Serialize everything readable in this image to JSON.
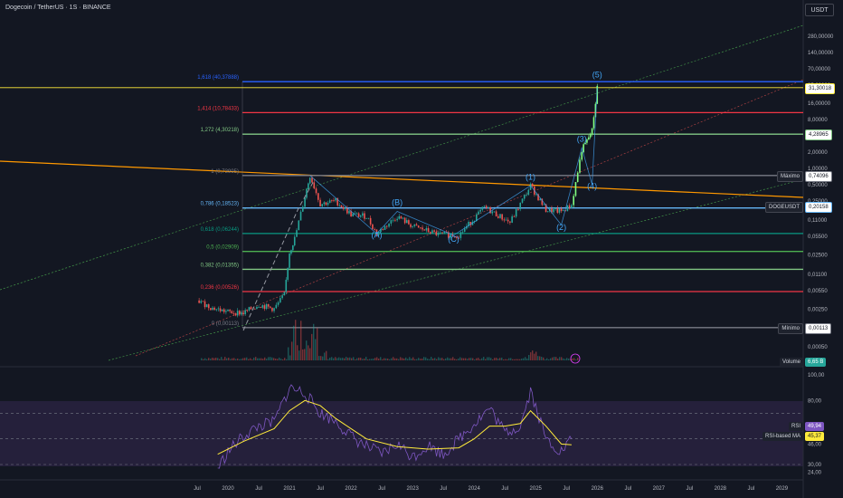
{
  "header": {
    "title": "Dogecoin / TetherUS · 1S · BINANCE",
    "currency_button": "USDT"
  },
  "chart_data": [
    {
      "type": "line",
      "subtype": "candlestick",
      "name": "DOGEUSDT",
      "y_scale": "log",
      "x_tick_labels": [
        "Jul",
        "2020",
        "Jul",
        "2021",
        "Jul",
        "2022",
        "Jul",
        "2023",
        "Jul",
        "2024",
        "Jul",
        "2025",
        "Jul",
        "2026",
        "Jul",
        "2027",
        "Jul",
        "2028",
        "Jul",
        "2029"
      ],
      "y_tick_labels": [
        "280,00000",
        "140,00000",
        "70,00000",
        "35,00000",
        "16,00000",
        "8,00000",
        "4,00000",
        "2,00000",
        "1,00000",
        "0,50000",
        "0,25000",
        "0,11000",
        "0,05500",
        "0,02500",
        "0,01100",
        "0,00550",
        "0,00250",
        "0,00100",
        "0,00050"
      ],
      "price_points": [
        {
          "x": "2019-07",
          "y": 0.0036
        },
        {
          "x": "2019-10",
          "y": 0.0026
        },
        {
          "x": "2020-01",
          "y": 0.0022
        },
        {
          "x": "2020-04",
          "y": 0.0021
        },
        {
          "x": "2020-07",
          "y": 0.003
        },
        {
          "x": "2020-10",
          "y": 0.0025
        },
        {
          "x": "2020-12",
          "y": 0.0046
        },
        {
          "x": "2021-01",
          "y": 0.028
        },
        {
          "x": "2021-02",
          "y": 0.05
        },
        {
          "x": "2021-04",
          "y": 0.3
        },
        {
          "x": "2021-05",
          "y": 0.74
        },
        {
          "x": "2021-07",
          "y": 0.22
        },
        {
          "x": "2021-10",
          "y": 0.25
        },
        {
          "x": "2022-01",
          "y": 0.14
        },
        {
          "x": "2022-04",
          "y": 0.13
        },
        {
          "x": "2022-06",
          "y": 0.062
        },
        {
          "x": "2022-10",
          "y": 0.13
        },
        {
          "x": "2023-01",
          "y": 0.085
        },
        {
          "x": "2023-06",
          "y": 0.06
        },
        {
          "x": "2023-10",
          "y": 0.058
        },
        {
          "x": "2024-03",
          "y": 0.19
        },
        {
          "x": "2024-08",
          "y": 0.1
        },
        {
          "x": "2024-12",
          "y": 0.48
        },
        {
          "x": "2025-03",
          "y": 0.17
        },
        {
          "x": "2025-06",
          "y": 0.16
        },
        {
          "x": "2025-08",
          "y": 0.21
        },
        {
          "x": "2025-10",
          "y": 2.2
        },
        {
          "x": "2025-11",
          "y": 3.2
        },
        {
          "x": "2025-12",
          "y": 5.0
        },
        {
          "x": "2026-01",
          "y": 31.3
        }
      ],
      "fibonacci_levels": [
        {
          "label": "1,618 (40,37888)",
          "value": 40.37888,
          "color": "#2962ff"
        },
        {
          "label": "1,414 (10,78433)",
          "value": 10.78433,
          "color": "#f23645"
        },
        {
          "label": "1,272 (4,30218)",
          "value": 4.30218,
          "color": "#81c784"
        },
        {
          "label": "1 (0,73995)",
          "value": 0.73995,
          "color": "#787b86"
        },
        {
          "label": "0,786 (0,18523)",
          "value": 0.18523,
          "color": "#64b5f6"
        },
        {
          "label": "0,618 (0,06244)",
          "value": 0.06244,
          "color": "#089981"
        },
        {
          "label": "0,5 (0,02909)",
          "value": 0.02909,
          "color": "#4caf50"
        },
        {
          "label": "0,382 (0,01355)",
          "value": 0.01355,
          "color": "#81c784"
        },
        {
          "label": "0,236 (0,00526)",
          "value": 0.00526,
          "color": "#f23645"
        },
        {
          "label": "0 (0,00113)",
          "value": 0.00113,
          "color": "#787b86"
        }
      ],
      "wave_labels": [
        {
          "text": "(A)",
          "x": "2022-06",
          "y": 0.052
        },
        {
          "text": "(B)",
          "x": "2022-10",
          "y": 0.21
        },
        {
          "text": "(C)",
          "x": "2023-09",
          "y": 0.044
        },
        {
          "text": "(1)",
          "x": "2024-12",
          "y": 0.62
        },
        {
          "text": "(2)",
          "x": "2025-06",
          "y": 0.072
        },
        {
          "text": "(3)",
          "x": "2025-10",
          "y": 3.1
        },
        {
          "text": "(4)",
          "x": "2025-12",
          "y": 0.42
        },
        {
          "text": "(5)",
          "x": "2026-01",
          "y": 48
        }
      ],
      "price_tags": [
        {
          "text": "31,30018",
          "value": 31.30018,
          "bg": "#ffffff",
          "fg": "#131722",
          "border": "#ffeb3b"
        },
        {
          "text": "4,28965",
          "value": 4.28965,
          "bg": "#ffffff",
          "fg": "#131722",
          "border": "#81c784"
        },
        {
          "text": "0,74096",
          "value": 0.74096,
          "bg": "#ffffff",
          "fg": "#131722",
          "border": "#787b86",
          "label": "Máximo"
        },
        {
          "text": "0,20158",
          "value": 0.20158,
          "bg": "#ffffff",
          "fg": "#131722",
          "border": "#64b5f6",
          "label": "DOGEUSDT"
        },
        {
          "text": "0,00113",
          "value": 0.00113,
          "bg": "#ffffff",
          "fg": "#131722",
          "border": "#787b86",
          "label": "Mínimo"
        }
      ],
      "volume_tag": {
        "label": "Volume",
        "text": "6,65 B"
      },
      "trendline_color": "#ff9800",
      "up_color": "#26a69a",
      "down_color": "#ef5350",
      "extension_color": "#81ff81",
      "hline_color": "#ffeb3b",
      "wave_color": "#42a5f5"
    },
    {
      "type": "line",
      "name": "RSI",
      "y_tick_labels": [
        "100,00",
        "80,00",
        "60,00",
        "46,00",
        "30,00",
        "24,00"
      ],
      "ylim": [
        20,
        104
      ],
      "bands": [
        70,
        50,
        30
      ],
      "rsi": [
        {
          "x": "2019-11",
          "y": 27
        },
        {
          "x": "2020-01",
          "y": 40
        },
        {
          "x": "2020-04",
          "y": 52
        },
        {
          "x": "2020-07",
          "y": 60
        },
        {
          "x": "2020-10",
          "y": 63
        },
        {
          "x": "2021-01",
          "y": 90
        },
        {
          "x": "2021-04",
          "y": 86
        },
        {
          "x": "2021-07",
          "y": 70
        },
        {
          "x": "2021-10",
          "y": 64
        },
        {
          "x": "2022-01",
          "y": 52
        },
        {
          "x": "2022-04",
          "y": 44
        },
        {
          "x": "2022-07",
          "y": 38
        },
        {
          "x": "2022-10",
          "y": 46
        },
        {
          "x": "2023-01",
          "y": 36
        },
        {
          "x": "2023-04",
          "y": 45
        },
        {
          "x": "2023-07",
          "y": 38
        },
        {
          "x": "2023-10",
          "y": 50
        },
        {
          "x": "2024-01",
          "y": 62
        },
        {
          "x": "2024-04",
          "y": 74
        },
        {
          "x": "2024-07",
          "y": 55
        },
        {
          "x": "2024-10",
          "y": 60
        },
        {
          "x": "2024-12",
          "y": 88
        },
        {
          "x": "2025-03",
          "y": 50
        },
        {
          "x": "2025-06",
          "y": 40
        },
        {
          "x": "2025-08",
          "y": 49.94
        }
      ],
      "rsi_ma": [
        {
          "x": "2019-11",
          "y": 38
        },
        {
          "x": "2020-04",
          "y": 48
        },
        {
          "x": "2020-10",
          "y": 58
        },
        {
          "x": "2021-01",
          "y": 72
        },
        {
          "x": "2021-04",
          "y": 80
        },
        {
          "x": "2021-07",
          "y": 76
        },
        {
          "x": "2021-10",
          "y": 66
        },
        {
          "x": "2022-01",
          "y": 58
        },
        {
          "x": "2022-04",
          "y": 50
        },
        {
          "x": "2022-10",
          "y": 44
        },
        {
          "x": "2023-04",
          "y": 42
        },
        {
          "x": "2023-10",
          "y": 43
        },
        {
          "x": "2024-01",
          "y": 50
        },
        {
          "x": "2024-04",
          "y": 60
        },
        {
          "x": "2024-07",
          "y": 60
        },
        {
          "x": "2024-10",
          "y": 62
        },
        {
          "x": "2024-12",
          "y": 72
        },
        {
          "x": "2025-03",
          "y": 60
        },
        {
          "x": "2025-06",
          "y": 46
        },
        {
          "x": "2025-08",
          "y": 45.37
        }
      ],
      "rsi_color": "#7e57c2",
      "ma_color": "#ffeb3b",
      "tags": [
        {
          "label": "RSI",
          "text": "49,94",
          "bg": "#7e57c2",
          "fg": "#ffffff"
        },
        {
          "label": "RSI-based MA",
          "text": "45,37",
          "bg": "#ffeb3b",
          "fg": "#131722"
        }
      ]
    }
  ]
}
